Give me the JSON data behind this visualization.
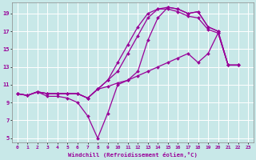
{
  "title": "",
  "xlabel": "Windchill (Refroidissement éolien,°C)",
  "ylabel": "",
  "bg_color": "#c8e8e8",
  "grid_color": "#ffffff",
  "line_color": "#990099",
  "xlim": [
    -0.5,
    23.5
  ],
  "ylim": [
    4.5,
    20.2
  ],
  "xticks": [
    0,
    1,
    2,
    3,
    4,
    5,
    6,
    7,
    8,
    9,
    10,
    11,
    12,
    13,
    14,
    15,
    16,
    17,
    18,
    19,
    20,
    21,
    22,
    23
  ],
  "yticks": [
    5,
    7,
    9,
    11,
    13,
    15,
    17,
    19
  ],
  "series": [
    {
      "x": [
        0,
        1,
        2,
        3,
        4,
        5,
        6,
        7,
        8,
        9,
        10,
        11,
        12,
        13,
        14,
        15,
        16,
        17,
        18,
        19,
        20,
        21,
        22
      ],
      "y": [
        10.0,
        9.8,
        10.2,
        10.0,
        10.0,
        10.0,
        10.0,
        9.5,
        10.5,
        11.5,
        13.5,
        15.5,
        17.5,
        19.0,
        19.5,
        19.5,
        19.2,
        18.7,
        18.5,
        17.2,
        16.8,
        13.2,
        13.2
      ]
    },
    {
      "x": [
        0,
        1,
        2,
        3,
        4,
        5,
        6,
        7,
        8,
        9,
        10,
        11,
        12,
        13,
        14,
        15,
        16,
        17,
        18,
        19,
        20,
        21,
        22
      ],
      "y": [
        10.0,
        9.8,
        10.2,
        10.0,
        10.0,
        10.0,
        10.0,
        9.5,
        10.5,
        11.5,
        12.5,
        14.5,
        16.5,
        18.5,
        19.5,
        19.7,
        19.5,
        19.0,
        19.2,
        17.5,
        17.0,
        13.2,
        13.2
      ]
    },
    {
      "x": [
        0,
        1,
        2,
        3,
        4,
        5,
        6,
        7,
        8,
        9,
        10,
        11,
        12,
        13,
        14,
        15,
        16,
        17,
        18,
        19,
        20,
        21,
        22
      ],
      "y": [
        10.0,
        9.8,
        10.2,
        9.7,
        9.7,
        9.5,
        9.0,
        7.5,
        5.0,
        7.8,
        11.0,
        11.5,
        12.5,
        16.0,
        18.5,
        19.7,
        19.5,
        19.0,
        19.2,
        17.5,
        17.0,
        13.2,
        13.2
      ]
    },
    {
      "x": [
        0,
        1,
        2,
        3,
        4,
        5,
        6,
        7,
        8,
        9,
        10,
        11,
        12,
        13,
        14,
        15,
        16,
        17,
        18,
        19,
        20,
        21,
        22
      ],
      "y": [
        10.0,
        9.8,
        10.2,
        10.0,
        10.0,
        10.0,
        10.0,
        9.5,
        10.5,
        10.8,
        11.2,
        11.5,
        12.0,
        12.5,
        13.0,
        13.5,
        14.0,
        14.5,
        13.5,
        14.5,
        16.8,
        13.2,
        13.2
      ]
    }
  ]
}
